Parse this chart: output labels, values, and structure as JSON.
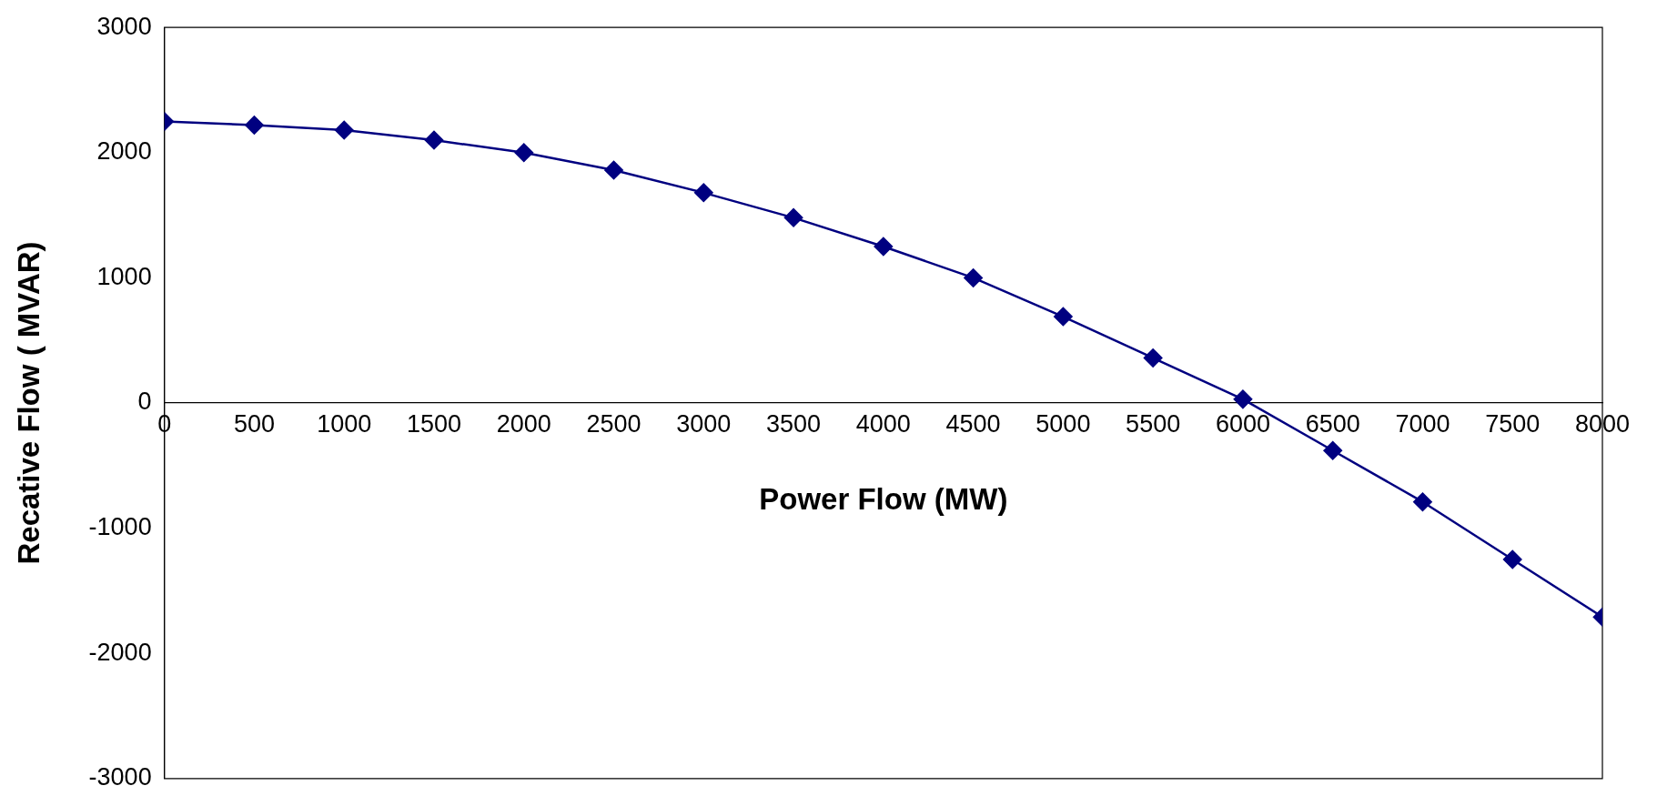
{
  "chart_data": {
    "type": "line",
    "xlabel": "Power Flow (MW)",
    "ylabel": "Recative Flow ( MVAR)",
    "x": [
      0,
      500,
      1000,
      1500,
      2000,
      2500,
      3000,
      3500,
      4000,
      4500,
      5000,
      5500,
      6000,
      6500,
      7000,
      7500,
      8000
    ],
    "series": [
      {
        "color": "#000080",
        "values": [
          2250,
          2220,
          2180,
          2100,
          2000,
          1860,
          1680,
          1480,
          1250,
          1000,
          690,
          360,
          30,
          -380,
          -790,
          -1250,
          -1710
        ]
      }
    ],
    "xlim": [
      0,
      8000
    ],
    "xticks": [
      0,
      500,
      1000,
      1500,
      2000,
      2500,
      3000,
      3500,
      4000,
      4500,
      5000,
      5500,
      6000,
      6500,
      7000,
      7500,
      8000
    ],
    "ylim": [
      -3000,
      3000
    ],
    "yticks": [
      -3000,
      -2000,
      -1000,
      0,
      1000,
      2000,
      3000
    ],
    "grid": false,
    "legend": false,
    "marker": "diamond",
    "line_style": "solid"
  }
}
